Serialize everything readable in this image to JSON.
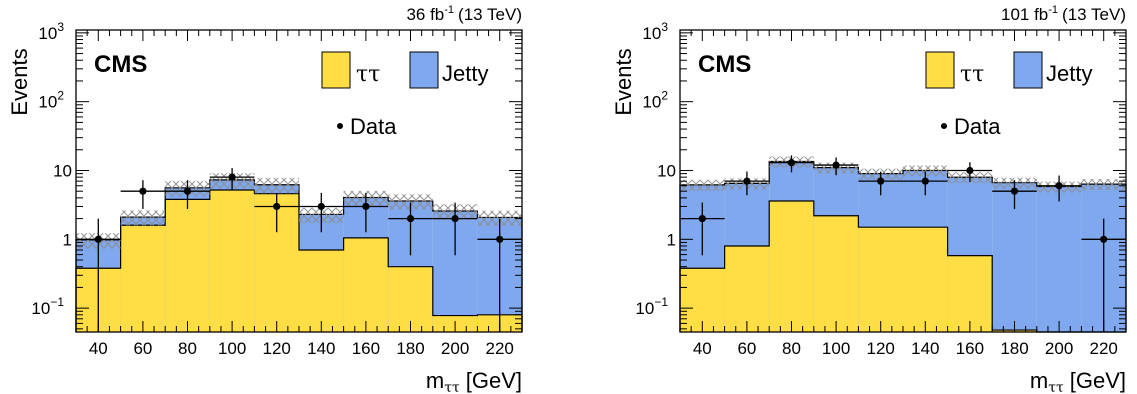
{
  "colors": {
    "tautau": "#ffdd44",
    "jetty": "#7fa8ee",
    "uncertainty_hatch": "#8c8c8c",
    "frame": "#000000"
  },
  "chart_data": [
    {
      "type": "bar",
      "stacked": true,
      "y_scale": "log",
      "lumi_label": "36 fb⁻¹ (13 TeV)",
      "lumi_value": "36 fb",
      "lumi_exp": "-1",
      "lumi_energy": "(13 TeV)",
      "experiment": "CMS",
      "xlabel": "m",
      "xlabel_sub": "ττ",
      "xlabel_unit": "[GeV]",
      "ylabel": "Events",
      "xlim": [
        30,
        230
      ],
      "ylim": [
        0.045,
        1100
      ],
      "grid": false,
      "legend_placement": "top-right",
      "x_ticks": [
        40,
        60,
        80,
        100,
        120,
        140,
        160,
        180,
        200,
        220
      ],
      "y_ticks": [
        {
          "value": 0.1,
          "base": "10",
          "exp": "−1"
        },
        {
          "value": 1,
          "base": "1",
          "exp": ""
        },
        {
          "value": 10,
          "base": "10",
          "exp": ""
        },
        {
          "value": 100,
          "base": "10",
          "exp": "2"
        },
        {
          "value": 1000,
          "base": "10",
          "exp": "3"
        }
      ],
      "bin_edges": [
        30,
        50,
        70,
        90,
        110,
        130,
        150,
        170,
        190,
        210,
        230
      ],
      "series": [
        {
          "name": "ττ",
          "color_key": "tautau",
          "values": [
            0.38,
            1.6,
            3.8,
            5.2,
            4.6,
            0.7,
            1.05,
            0.4,
            0.078,
            0.08
          ]
        },
        {
          "name": "Jetty",
          "color_key": "jetty",
          "values": [
            0.6,
            0.5,
            1.8,
            2.1,
            1.6,
            1.6,
            3.0,
            3.2,
            2.5,
            2.0
          ]
        }
      ],
      "uncertainty_rel": 0.25,
      "data": {
        "name": "Data",
        "x": [
          40,
          60,
          80,
          100,
          120,
          140,
          160,
          180,
          200,
          220
        ],
        "y": [
          1,
          5,
          5,
          8,
          3,
          3,
          3,
          2,
          2,
          1
        ]
      }
    },
    {
      "type": "bar",
      "stacked": true,
      "y_scale": "log",
      "lumi_label": "101 fb⁻¹ (13 TeV)",
      "lumi_value": "101 fb",
      "lumi_exp": "-1",
      "lumi_energy": "(13 TeV)",
      "experiment": "CMS",
      "xlabel": "m",
      "xlabel_sub": "ττ",
      "xlabel_unit": "[GeV]",
      "ylabel": "Events",
      "xlim": [
        30,
        230
      ],
      "ylim": [
        0.045,
        1100
      ],
      "grid": false,
      "legend_placement": "top-right",
      "x_ticks": [
        40,
        60,
        80,
        100,
        120,
        140,
        160,
        180,
        200,
        220
      ],
      "y_ticks": [
        {
          "value": 0.1,
          "base": "10",
          "exp": "−1"
        },
        {
          "value": 1,
          "base": "1",
          "exp": ""
        },
        {
          "value": 10,
          "base": "10",
          "exp": ""
        },
        {
          "value": 100,
          "base": "10",
          "exp": "2"
        },
        {
          "value": 1000,
          "base": "10",
          "exp": "3"
        }
      ],
      "bin_edges": [
        30,
        50,
        70,
        90,
        110,
        130,
        150,
        170,
        190,
        210,
        230
      ],
      "series": [
        {
          "name": "ττ",
          "color_key": "tautau",
          "values": [
            0.38,
            0.8,
            3.6,
            2.2,
            1.5,
            1.5,
            0.58,
            0.048,
            0.045,
            0.045
          ]
        },
        {
          "name": "Jetty",
          "color_key": "jetty",
          "values": [
            5.8,
            5.7,
            9.9,
            8.8,
            7.5,
            8.5,
            7.4,
            6.6,
            5.8,
            6.3
          ]
        }
      ],
      "uncertainty_rel": 0.18,
      "data": {
        "name": "Data",
        "x": [
          40,
          60,
          80,
          100,
          120,
          140,
          160,
          180,
          200,
          220
        ],
        "y": [
          2,
          7,
          13,
          12,
          7,
          7,
          10,
          5,
          6,
          1
        ]
      }
    }
  ]
}
